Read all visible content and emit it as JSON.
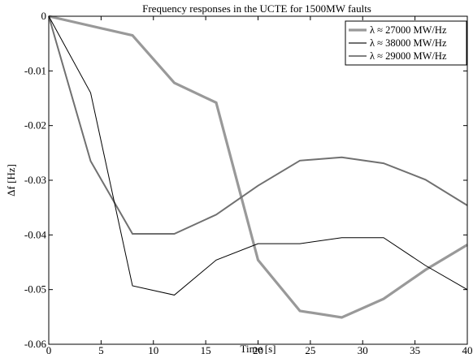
{
  "chart_data": {
    "type": "line",
    "title": "Frequency responses in the UCTE for 1500MW faults",
    "xlabel": "Time [s]",
    "ylabel": "Δf [Hz]",
    "xlim": [
      0,
      40
    ],
    "ylim": [
      -0.06,
      0
    ],
    "x_ticks": [
      0,
      5,
      10,
      15,
      20,
      25,
      30,
      35,
      40
    ],
    "x_tick_labels": [
      "0",
      "5",
      "10",
      "15",
      "20",
      "25",
      "30",
      "35",
      "40"
    ],
    "y_ticks": [
      0,
      -0.01,
      -0.02,
      -0.03,
      -0.04,
      -0.05,
      -0.06
    ],
    "y_tick_labels": [
      "0",
      "-0.01",
      "-0.02",
      "-0.03",
      "-0.04",
      "-0.05",
      "-0.06"
    ],
    "grid": false,
    "legend_position": "top-right",
    "series": [
      {
        "name": "λ ≈ 27000 MW/Hz",
        "color": "#999999",
        "line_weight": "thick",
        "x": [
          0,
          8,
          12,
          16,
          20,
          24,
          28,
          32,
          36,
          40
        ],
        "y": [
          0,
          -0.0035,
          -0.0122,
          -0.0158,
          -0.0446,
          -0.0539,
          -0.0551,
          -0.0517,
          -0.0464,
          -0.0418
        ]
      },
      {
        "name": "λ ≈ 38000 MW/Hz",
        "color": "#707070",
        "line_weight": "medium",
        "x": [
          0,
          4,
          8,
          12,
          16,
          20,
          24,
          28,
          32,
          36,
          40
        ],
        "y": [
          0,
          -0.0265,
          -0.0398,
          -0.0398,
          -0.0363,
          -0.031,
          -0.0264,
          -0.0258,
          -0.0269,
          -0.0299,
          -0.0346
        ]
      },
      {
        "name": "λ ≈ 29000 MW/Hz",
        "color": "#000000",
        "line_weight": "thin",
        "x": [
          0,
          4,
          8,
          12,
          16,
          20,
          24,
          28,
          32,
          36,
          40
        ],
        "y": [
          0,
          -0.014,
          -0.0493,
          -0.051,
          -0.0446,
          -0.0416,
          -0.0416,
          -0.0405,
          -0.0405,
          -0.0456,
          -0.05
        ]
      }
    ]
  }
}
